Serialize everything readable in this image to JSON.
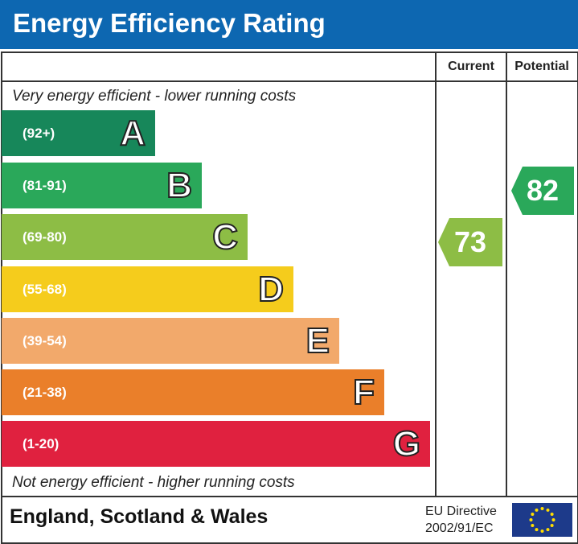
{
  "title": "Energy Efficiency Rating",
  "columns": {
    "current": "Current",
    "potential": "Potential"
  },
  "top_note": "Very energy efficient - lower running costs",
  "bottom_note": "Not energy efficient - higher running costs",
  "footer": {
    "region": "England, Scotland & Wales",
    "directive_line1": "EU Directive",
    "directive_line2": "2002/91/EC",
    "flag_icon": "eu-flag-icon"
  },
  "chart_data": {
    "type": "bar",
    "bands": [
      {
        "letter": "A",
        "range": "(92+)",
        "color": "#17875a"
      },
      {
        "letter": "B",
        "range": "(81-91)",
        "color": "#2aa85a"
      },
      {
        "letter": "C",
        "range": "(69-80)",
        "color": "#8dbd45"
      },
      {
        "letter": "D",
        "range": "(55-68)",
        "color": "#f5cc1c"
      },
      {
        "letter": "E",
        "range": "(39-54)",
        "color": "#f2a96b"
      },
      {
        "letter": "F",
        "range": "(21-38)",
        "color": "#ea7f2a"
      },
      {
        "letter": "G",
        "range": "(1-20)",
        "color": "#e0213f"
      }
    ],
    "current": {
      "value": "73",
      "band": "C",
      "color": "#8dbd45"
    },
    "potential": {
      "value": "82",
      "band": "B",
      "color": "#2aa85a"
    }
  }
}
